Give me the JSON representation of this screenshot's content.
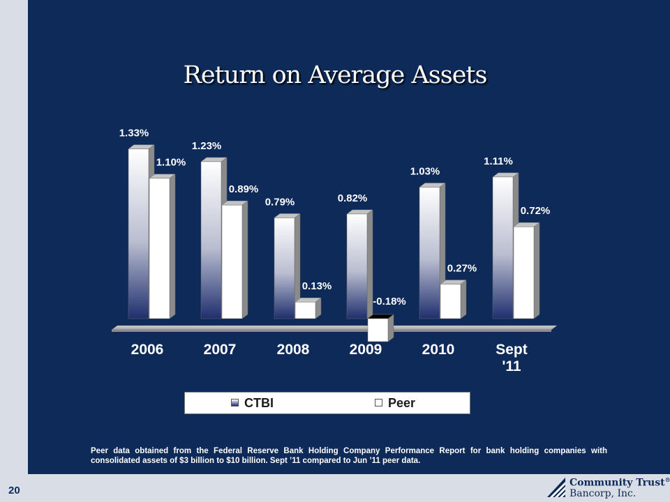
{
  "page_number": "20",
  "title": "Return on Average Assets",
  "footnote": "Peer data obtained from the Federal Reserve Bank Holding Company Performance Report for bank holding companies with consolidated assets of $3 billion to $10 billion. Sept ’11 compared to Jun ’11 peer data.",
  "logo": {
    "line1": "Community Trust",
    "line1_mark": "®",
    "line2": "Bancorp, Inc."
  },
  "legend": [
    {
      "name": "CTBI",
      "icon": "gradient-swatch"
    },
    {
      "name": "Peer",
      "icon": "white-swatch"
    }
  ],
  "colors": {
    "background": "#0e2a58",
    "ctbi_top": "#ffffff",
    "ctbi_bottom": "#1f2f6e",
    "peer": "#ffffff"
  },
  "chart_data": {
    "type": "bar",
    "title": "Return on Average Assets",
    "categories": [
      [
        "2006"
      ],
      [
        "2007"
      ],
      [
        "2008"
      ],
      [
        "2009"
      ],
      [
        "2010"
      ],
      [
        "Sept",
        "'11"
      ]
    ],
    "series": [
      {
        "name": "CTBI",
        "values": [
          1.33,
          1.23,
          0.79,
          0.82,
          1.03,
          1.11
        ],
        "labels": [
          "1.33%",
          "1.23%",
          "0.79%",
          "0.82%",
          "1.03%",
          "1.11%"
        ]
      },
      {
        "name": "Peer",
        "values": [
          1.1,
          0.89,
          0.13,
          -0.18,
          0.27,
          0.72
        ],
        "labels": [
          "1.10%",
          "0.89%",
          "0.13%",
          "-0.18%",
          "0.27%",
          "0.72%"
        ]
      }
    ],
    "legend_position": "bottom",
    "grid": false
  }
}
